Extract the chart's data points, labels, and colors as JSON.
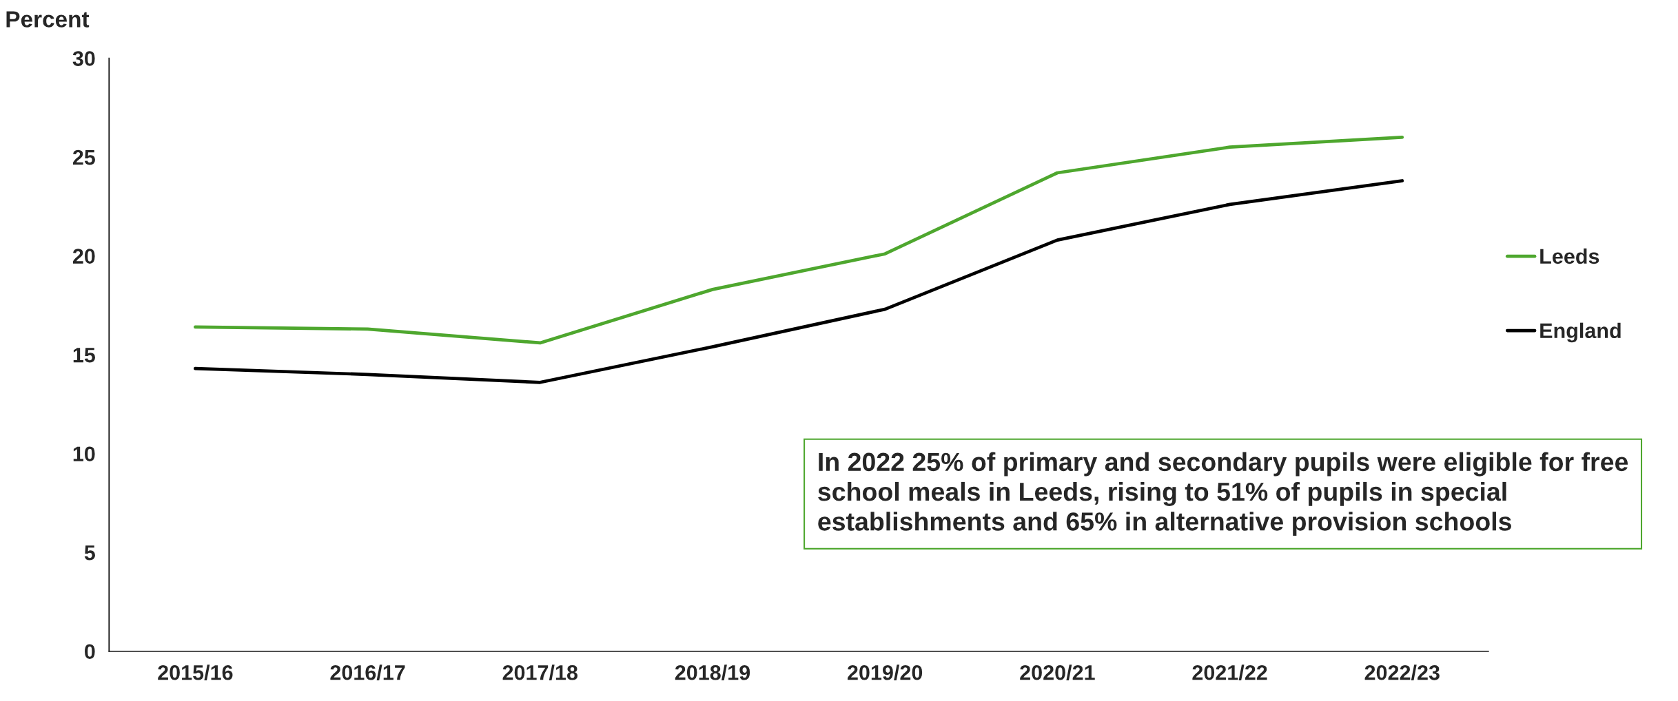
{
  "chart_data": {
    "type": "line",
    "ylabel": "Percent",
    "categories": [
      "2015/16",
      "2016/17",
      "2017/18",
      "2018/19",
      "2019/20",
      "2020/21",
      "2021/22",
      "2022/23"
    ],
    "series": [
      {
        "name": "Leeds",
        "color": "#4ea72e",
        "values": [
          16.4,
          16.3,
          15.6,
          18.3,
          20.1,
          24.2,
          25.5,
          26.0
        ]
      },
      {
        "name": "England",
        "color": "#000000",
        "values": [
          14.3,
          14.0,
          13.6,
          15.4,
          17.3,
          20.8,
          22.6,
          23.8
        ]
      }
    ],
    "ylim": [
      0,
      30
    ],
    "yticks": [
      0,
      5,
      10,
      15,
      20,
      25,
      30
    ],
    "grid": false,
    "legend": "right",
    "marker": "none",
    "line_style": "solid",
    "annotations": [
      "In 2022 25% of primary and secondary pupils were eligible for free school meals in Leeds, rising to 51% of pupils in special establishments and 65% in alternative provision schools"
    ]
  }
}
